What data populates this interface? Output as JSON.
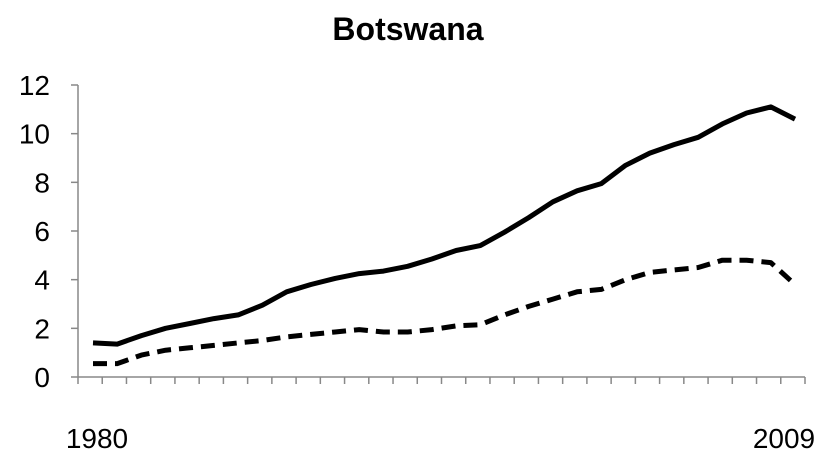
{
  "chart_data": {
    "type": "line",
    "title": "Botswana",
    "xlabel": "",
    "ylabel": "",
    "x": [
      1980,
      1981,
      1982,
      1983,
      1984,
      1985,
      1986,
      1987,
      1988,
      1989,
      1990,
      1991,
      1992,
      1993,
      1994,
      1995,
      1996,
      1997,
      1998,
      1999,
      2000,
      2001,
      2002,
      2003,
      2004,
      2005,
      2006,
      2007,
      2008,
      2009
    ],
    "x_tick_labels": [
      "1980",
      "2009"
    ],
    "ylim": [
      0,
      12
    ],
    "yticks": [
      0,
      2,
      4,
      6,
      8,
      10,
      12
    ],
    "grid": false,
    "legend": "none",
    "series": [
      {
        "style": "solid",
        "color": "#000000",
        "values": [
          1.4,
          1.35,
          1.7,
          2.0,
          2.2,
          2.4,
          2.55,
          2.95,
          3.5,
          3.8,
          4.05,
          4.25,
          4.35,
          4.55,
          4.85,
          5.2,
          5.4,
          5.95,
          6.55,
          7.2,
          7.65,
          7.95,
          8.7,
          9.2,
          9.55,
          9.85,
          10.4,
          10.85,
          11.1,
          10.6
        ]
      },
      {
        "style": "dashed",
        "color": "#000000",
        "values": [
          0.55,
          0.55,
          0.9,
          1.1,
          1.2,
          1.3,
          1.4,
          1.5,
          1.65,
          1.75,
          1.85,
          1.95,
          1.85,
          1.85,
          1.95,
          2.1,
          2.15,
          2.55,
          2.9,
          3.2,
          3.5,
          3.6,
          4.0,
          4.3,
          4.4,
          4.5,
          4.8,
          4.8,
          4.7,
          3.8
        ]
      }
    ]
  }
}
